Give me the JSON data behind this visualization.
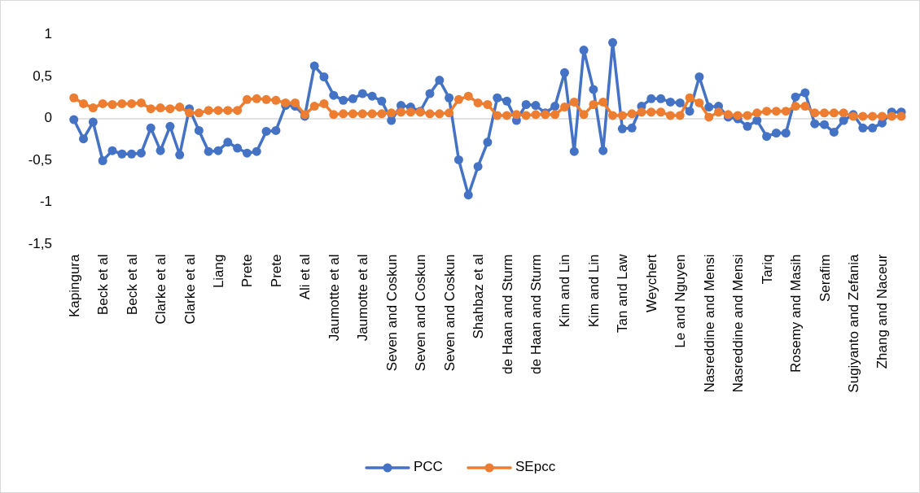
{
  "chart_data": {
    "type": "line",
    "categories": [
      "Kapingura",
      null,
      null,
      "Beck et al",
      null,
      null,
      "Beck et al",
      null,
      null,
      "Clarke et al",
      null,
      null,
      "Clarke et al",
      null,
      null,
      "Liang",
      null,
      null,
      "Prete",
      null,
      null,
      "Prete",
      null,
      null,
      "Ali et al",
      null,
      null,
      "Jaumotte et al",
      null,
      null,
      "Jaumotte et al",
      null,
      null,
      "Seven and Coskun",
      null,
      null,
      "Seven and Coskun",
      null,
      null,
      "Seven and Coskun",
      null,
      null,
      "Shahbaz et al",
      null,
      null,
      "de Haan and Sturm",
      null,
      null,
      "de Haan and Sturm",
      null,
      null,
      "Kim and Lin",
      null,
      null,
      "Kim and Lin",
      null,
      null,
      "Tan and Law",
      null,
      null,
      "Weychert",
      null,
      null,
      "Le and Nguyen",
      null,
      null,
      "Nasreddine and Mensi",
      null,
      null,
      "Nasreddine and Mensi",
      null,
      null,
      "Tariq",
      null,
      null,
      "Rosemy and Masih",
      null,
      null,
      "Serafim",
      null,
      null,
      "Sugiyanto and Zefania",
      null,
      null,
      "Zhang and Naceur",
      null,
      null
    ],
    "series": [
      {
        "name": "PCC",
        "color": "#4472c4",
        "values": [
          -0.01,
          -0.24,
          -0.04,
          -0.5,
          -0.38,
          -0.42,
          -0.42,
          -0.41,
          -0.11,
          -0.38,
          -0.09,
          -0.43,
          0.12,
          -0.14,
          -0.39,
          -0.38,
          -0.28,
          -0.35,
          -0.41,
          -0.39,
          -0.15,
          -0.14,
          0.16,
          0.15,
          0.03,
          0.63,
          0.5,
          0.28,
          0.22,
          0.24,
          0.3,
          0.27,
          0.21,
          -0.02,
          0.16,
          0.14,
          0.09,
          0.3,
          0.46,
          0.25,
          -0.49,
          -0.91,
          -0.57,
          -0.28,
          0.25,
          0.21,
          -0.02,
          0.17,
          0.16,
          0.07,
          0.15,
          0.55,
          -0.39,
          0.82,
          0.35,
          -0.38,
          0.91,
          -0.12,
          -0.11,
          0.15,
          0.24,
          0.24,
          0.2,
          0.19,
          0.09,
          0.5,
          0.14,
          0.15,
          0.02,
          0,
          -0.09,
          -0.02,
          -0.21,
          -0.17,
          -0.17,
          0.26,
          0.31,
          -0.06,
          -0.07,
          -0.16,
          -0.02,
          0.05,
          -0.11,
          -0.11,
          -0.05,
          0.08,
          0.08
        ]
      },
      {
        "name": "SEpcc",
        "color": "#ed7d31",
        "values": [
          0.25,
          0.18,
          0.13,
          0.18,
          0.17,
          0.18,
          0.18,
          0.19,
          0.12,
          0.13,
          0.12,
          0.14,
          0.07,
          0.07,
          0.1,
          0.1,
          0.1,
          0.1,
          0.23,
          0.24,
          0.23,
          0.22,
          0.19,
          0.19,
          0.05,
          0.15,
          0.18,
          0.05,
          0.06,
          0.06,
          0.06,
          0.06,
          0.06,
          0.07,
          0.08,
          0.08,
          0.08,
          0.06,
          0.06,
          0.07,
          0.23,
          0.27,
          0.19,
          0.17,
          0.04,
          0.04,
          0.05,
          0.04,
          0.05,
          0.05,
          0.05,
          0.14,
          0.2,
          0.05,
          0.17,
          0.2,
          0.04,
          0.04,
          0.06,
          0.08,
          0.08,
          0.08,
          0.04,
          0.04,
          0.25,
          0.19,
          0.02,
          0.08,
          0.05,
          0.04,
          0.04,
          0.07,
          0.09,
          0.09,
          0.09,
          0.15,
          0.15,
          0.07,
          0.07,
          0.07,
          0.07,
          0.03,
          0.03,
          0.03,
          0.03,
          0.03,
          0.03
        ]
      }
    ],
    "ylim": [
      -1.5,
      1
    ],
    "yticks": [
      {
        "value": -1.5,
        "label": "-1,5"
      },
      -1,
      {
        "value": -0.5,
        "label": "-0,5"
      },
      0,
      {
        "value": 0.5,
        "label": "0,5"
      },
      1
    ],
    "marker": "circle",
    "line_style": "solid",
    "legend": "bottom"
  }
}
